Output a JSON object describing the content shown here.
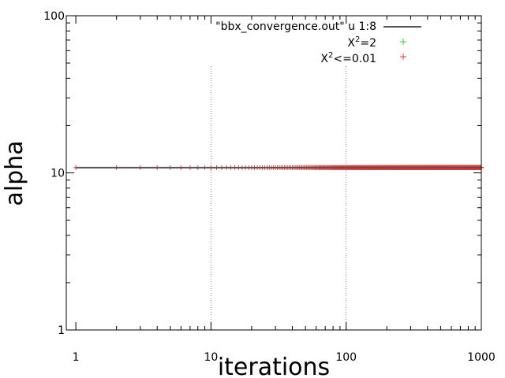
{
  "chart_data": {
    "type": "line",
    "xlabel": "iterations",
    "ylabel": "alpha",
    "xscale": "log",
    "yscale": "log",
    "xlim": [
      0.85,
      1000
    ],
    "ylim": [
      1,
      100
    ],
    "grid": "vertical dotted lines at x = 10 and x = 100",
    "x_ticks": [
      {
        "value": 1,
        "label": "1"
      },
      {
        "value": 10,
        "label": "10"
      },
      {
        "value": 100,
        "label": "100"
      },
      {
        "value": 1000,
        "label": "1000"
      }
    ],
    "y_ticks": [
      {
        "value": 1,
        "label": "1"
      },
      {
        "value": 10,
        "label": "10"
      },
      {
        "value": 100,
        "label": "100"
      }
    ],
    "legend_position": "top-right",
    "series": [
      {
        "name": "\"bbx_convergence.out\" u 1:8",
        "kind": "line",
        "color": "#555555",
        "x_range": [
          1,
          1000
        ],
        "y_constant": 10.8
      },
      {
        "name_base": "X",
        "name_sup": "2",
        "name_suffix": "=2",
        "kind": "points",
        "marker": "+",
        "color": "#33cc33",
        "x": [],
        "y": []
      },
      {
        "name_base": "X",
        "name_sup": "2",
        "name_suffix": "<=0.01",
        "kind": "points",
        "marker": "+",
        "color": "#ee3333",
        "x_range": [
          1,
          1000
        ],
        "y_constant": 10.8
      }
    ]
  }
}
